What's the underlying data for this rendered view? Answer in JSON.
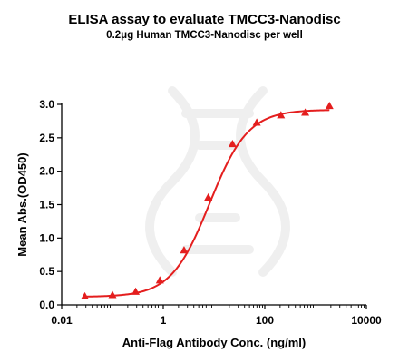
{
  "chart_data": {
    "type": "scatter",
    "title": "ELISA assay to evaluate TMCC3-Nanodisc",
    "subtitle": "0.2μg Human TMCC3-Nanodisc per well",
    "xlabel": "Anti-Flag Antibody Conc. (ng/ml)",
    "ylabel": "Mean Abs.(OD450)",
    "xscale": "log",
    "xlim": [
      0.01,
      10000
    ],
    "ylim": [
      0,
      3.0
    ],
    "xticks": [
      0.01,
      1,
      100,
      10000
    ],
    "xtick_labels": [
      "0.01",
      "1",
      "100",
      "10000"
    ],
    "yticks": [
      0,
      0.5,
      1.0,
      1.5,
      2.0,
      2.5,
      3.0
    ],
    "ytick_labels": [
      "0.0",
      "0.5",
      "1.0",
      "1.5",
      "2.0",
      "2.5",
      "3.0"
    ],
    "grid": false,
    "marker": "triangle",
    "color": "#e41e1e",
    "points": {
      "x": [
        0.0286,
        0.1,
        0.286,
        0.857,
        2.57,
        7.71,
        23.1,
        69.4,
        208,
        625,
        1875
      ],
      "y": [
        0.13,
        0.15,
        0.2,
        0.37,
        0.82,
        1.61,
        2.41,
        2.73,
        2.84,
        2.88,
        2.98
      ]
    },
    "fit_curve": {
      "model": "4PL",
      "bottom": 0.12,
      "top": 2.92,
      "ec50": 8.2,
      "hill": 1.15
    }
  }
}
